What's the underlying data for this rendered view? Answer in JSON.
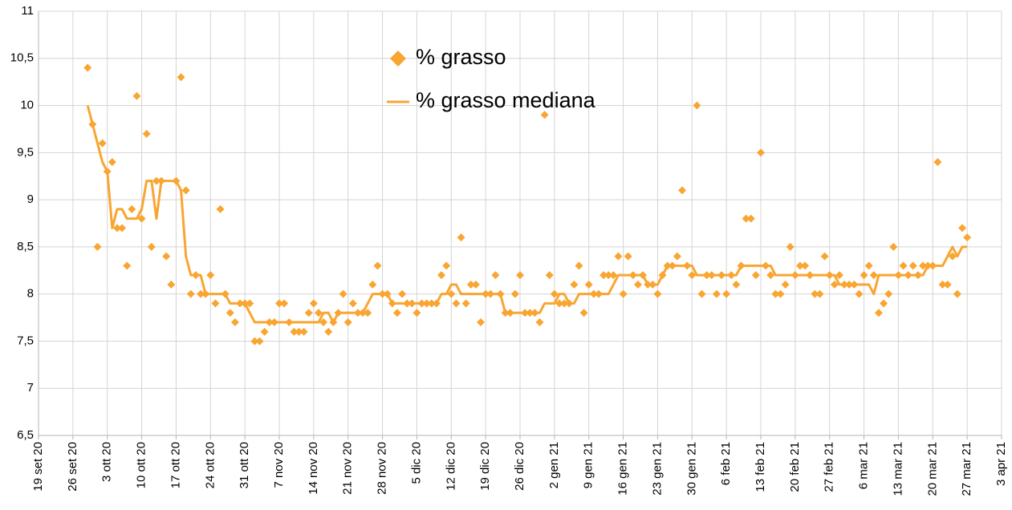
{
  "chart_data": {
    "type": "scatter",
    "x": [
      "2020-09-29",
      "2020-09-30",
      "2020-10-01",
      "2020-10-02",
      "2020-10-03",
      "2020-10-04",
      "2020-10-05",
      "2020-10-06",
      "2020-10-07",
      "2020-10-08",
      "2020-10-09",
      "2020-10-10",
      "2020-10-11",
      "2020-10-12",
      "2020-10-13",
      "2020-10-14",
      "2020-10-15",
      "2020-10-16",
      "2020-10-17",
      "2020-10-18",
      "2020-10-19",
      "2020-10-20",
      "2020-10-21",
      "2020-10-22",
      "2020-10-23",
      "2020-10-24",
      "2020-10-25",
      "2020-10-26",
      "2020-10-27",
      "2020-10-28",
      "2020-10-29",
      "2020-10-30",
      "2020-10-31",
      "2020-11-01",
      "2020-11-02",
      "2020-11-03",
      "2020-11-04",
      "2020-11-05",
      "2020-11-06",
      "2020-11-07",
      "2020-11-08",
      "2020-11-09",
      "2020-11-10",
      "2020-11-11",
      "2020-11-12",
      "2020-11-13",
      "2020-11-14",
      "2020-11-15",
      "2020-11-16",
      "2020-11-17",
      "2020-11-18",
      "2020-11-19",
      "2020-11-20",
      "2020-11-21",
      "2020-11-22",
      "2020-11-23",
      "2020-11-24",
      "2020-11-25",
      "2020-11-26",
      "2020-11-27",
      "2020-11-28",
      "2020-11-29",
      "2020-11-30",
      "2020-12-01",
      "2020-12-02",
      "2020-12-03",
      "2020-12-04",
      "2020-12-05",
      "2020-12-06",
      "2020-12-07",
      "2020-12-08",
      "2020-12-09",
      "2020-12-10",
      "2020-12-11",
      "2020-12-12",
      "2020-12-13",
      "2020-12-14",
      "2020-12-15",
      "2020-12-16",
      "2020-12-17",
      "2020-12-18",
      "2020-12-19",
      "2020-12-20",
      "2020-12-21",
      "2020-12-22",
      "2020-12-23",
      "2020-12-24",
      "2020-12-25",
      "2020-12-26",
      "2020-12-27",
      "2020-12-28",
      "2020-12-29",
      "2020-12-30",
      "2020-12-31",
      "2021-01-01",
      "2021-01-02",
      "2021-01-03",
      "2021-01-04",
      "2021-01-05",
      "2021-01-06",
      "2021-01-07",
      "2021-01-08",
      "2021-01-09",
      "2021-01-10",
      "2021-01-11",
      "2021-01-12",
      "2021-01-13",
      "2021-01-14",
      "2021-01-15",
      "2021-01-16",
      "2021-01-17",
      "2021-01-18",
      "2021-01-19",
      "2021-01-20",
      "2021-01-21",
      "2021-01-22",
      "2021-01-23",
      "2021-01-24",
      "2021-01-25",
      "2021-01-26",
      "2021-01-27",
      "2021-01-28",
      "2021-01-29",
      "2021-01-30",
      "2021-01-31",
      "2021-02-01",
      "2021-02-02",
      "2021-02-03",
      "2021-02-04",
      "2021-02-05",
      "2021-02-06",
      "2021-02-07",
      "2021-02-08",
      "2021-02-09",
      "2021-02-10",
      "2021-02-11",
      "2021-02-12",
      "2021-02-13",
      "2021-02-14",
      "2021-02-15",
      "2021-02-16",
      "2021-02-17",
      "2021-02-18",
      "2021-02-19",
      "2021-02-20",
      "2021-02-21",
      "2021-02-22",
      "2021-02-23",
      "2021-02-24",
      "2021-02-25",
      "2021-02-26",
      "2021-02-27",
      "2021-02-28",
      "2021-03-01",
      "2021-03-02",
      "2021-03-03",
      "2021-03-04",
      "2021-03-05",
      "2021-03-06",
      "2021-03-07",
      "2021-03-08",
      "2021-03-09",
      "2021-03-10",
      "2021-03-11",
      "2021-03-12",
      "2021-03-13",
      "2021-03-14",
      "2021-03-15",
      "2021-03-16",
      "2021-03-17",
      "2021-03-18",
      "2021-03-19",
      "2021-03-20",
      "2021-03-21",
      "2021-03-22",
      "2021-03-23",
      "2021-03-24",
      "2021-03-25",
      "2021-03-26",
      "2021-03-27"
    ],
    "series": [
      {
        "name": "% grasso",
        "type": "scatter",
        "color": "#f9a531",
        "values": [
          10.4,
          9.8,
          8.5,
          9.6,
          9.3,
          9.4,
          8.7,
          8.7,
          8.3,
          8.9,
          10.1,
          8.8,
          9.7,
          8.5,
          9.2,
          9.2,
          8.4,
          8.1,
          9.2,
          10.3,
          9.1,
          8.0,
          8.2,
          8.0,
          8.0,
          8.2,
          7.9,
          8.9,
          8.0,
          7.8,
          7.7,
          7.9,
          7.9,
          7.9,
          7.5,
          7.5,
          7.6,
          7.7,
          7.7,
          7.9,
          7.9,
          7.7,
          7.6,
          7.6,
          7.6,
          7.8,
          7.9,
          7.8,
          7.7,
          7.6,
          7.7,
          7.8,
          8.0,
          7.7,
          7.9,
          7.8,
          7.8,
          7.8,
          8.1,
          8.3,
          8.0,
          8.0,
          7.9,
          7.8,
          8.0,
          7.9,
          7.9,
          7.8,
          7.9,
          7.9,
          7.9,
          7.9,
          8.2,
          8.3,
          8.0,
          7.9,
          8.6,
          7.9,
          8.1,
          8.1,
          7.7,
          8.0,
          8.0,
          8.2,
          8.0,
          7.8,
          7.8,
          8.0,
          8.2,
          7.8,
          7.8,
          7.8,
          7.7,
          9.9,
          8.2,
          8.0,
          7.9,
          7.9,
          7.9,
          8.1,
          8.3,
          7.8,
          8.1,
          8.0,
          8.0,
          8.2,
          8.2,
          8.2,
          8.4,
          8.0,
          8.4,
          8.2,
          8.1,
          8.2,
          8.1,
          8.1,
          8.0,
          8.2,
          8.3,
          8.3,
          8.4,
          9.1,
          8.3,
          8.2,
          10.0,
          8.0,
          8.2,
          8.2,
          8.0,
          8.2,
          8.0,
          8.2,
          8.1,
          8.3,
          8.8,
          8.8,
          8.2,
          9.5,
          8.3,
          8.2,
          8.0,
          8.0,
          8.1,
          8.5,
          8.2,
          8.3,
          8.3,
          8.2,
          8.0,
          8.0,
          8.4,
          8.2,
          8.1,
          8.2,
          8.1,
          8.1,
          8.1,
          8.0,
          8.2,
          8.3,
          8.2,
          7.8,
          7.9,
          8.0,
          8.5,
          8.2,
          8.3,
          8.2,
          8.3,
          8.2,
          8.3,
          8.3,
          8.3,
          9.4,
          8.1,
          8.1,
          8.4,
          8.0,
          8.7,
          8.6
        ]
      },
      {
        "name": "% grasso mediana",
        "type": "line",
        "color": "#f9a531",
        "values": [
          10.0,
          9.8,
          9.6,
          9.4,
          9.3,
          8.7,
          8.9,
          8.9,
          8.8,
          8.8,
          8.8,
          8.9,
          9.2,
          9.2,
          8.8,
          9.2,
          9.2,
          9.2,
          9.2,
          9.1,
          8.4,
          8.2,
          8.2,
          8.2,
          8.0,
          8.0,
          8.0,
          8.0,
          8.0,
          7.9,
          7.9,
          7.9,
          7.9,
          7.8,
          7.7,
          7.7,
          7.7,
          7.7,
          7.7,
          7.7,
          7.7,
          7.7,
          7.7,
          7.7,
          7.7,
          7.7,
          7.7,
          7.7,
          7.8,
          7.8,
          7.7,
          7.8,
          7.8,
          7.8,
          7.8,
          7.8,
          7.8,
          7.9,
          8.0,
          8.0,
          8.0,
          8.0,
          7.9,
          7.9,
          7.9,
          7.9,
          7.9,
          7.9,
          7.9,
          7.9,
          7.9,
          7.9,
          8.0,
          8.0,
          8.1,
          8.1,
          8.0,
          8.0,
          8.0,
          8.0,
          8.0,
          8.0,
          8.0,
          8.0,
          8.0,
          7.8,
          7.8,
          7.8,
          7.8,
          7.8,
          7.8,
          7.8,
          7.8,
          7.9,
          7.9,
          7.9,
          8.0,
          8.0,
          7.9,
          7.9,
          8.0,
          8.0,
          8.0,
          8.0,
          8.0,
          8.0,
          8.0,
          8.1,
          8.2,
          8.2,
          8.2,
          8.2,
          8.2,
          8.2,
          8.1,
          8.1,
          8.1,
          8.2,
          8.3,
          8.3,
          8.3,
          8.3,
          8.3,
          8.3,
          8.2,
          8.2,
          8.2,
          8.2,
          8.2,
          8.2,
          8.2,
          8.2,
          8.2,
          8.3,
          8.3,
          8.3,
          8.3,
          8.3,
          8.3,
          8.3,
          8.2,
          8.2,
          8.2,
          8.2,
          8.2,
          8.2,
          8.2,
          8.2,
          8.2,
          8.2,
          8.2,
          8.2,
          8.2,
          8.1,
          8.1,
          8.1,
          8.1,
          8.1,
          8.1,
          8.1,
          8.0,
          8.2,
          8.2,
          8.2,
          8.2,
          8.2,
          8.2,
          8.2,
          8.2,
          8.2,
          8.2,
          8.3,
          8.3,
          8.3,
          8.3,
          8.4,
          8.5,
          8.4,
          8.5,
          8.5
        ]
      }
    ],
    "xlim": [
      "2020-09-19",
      "2021-04-03"
    ],
    "xticks": [
      {
        "value": "2020-09-19",
        "label": "19 set 20"
      },
      {
        "value": "2020-09-26",
        "label": "26 set 20"
      },
      {
        "value": "2020-10-03",
        "label": "3 ott 20"
      },
      {
        "value": "2020-10-10",
        "label": "10 ott 20"
      },
      {
        "value": "2020-10-17",
        "label": "17 ott 20"
      },
      {
        "value": "2020-10-24",
        "label": "24 ott 20"
      },
      {
        "value": "2020-10-31",
        "label": "31 ott 20"
      },
      {
        "value": "2020-11-07",
        "label": "7 nov 20"
      },
      {
        "value": "2020-11-14",
        "label": "14 nov 20"
      },
      {
        "value": "2020-11-21",
        "label": "21 nov 20"
      },
      {
        "value": "2020-11-28",
        "label": "28 nov 20"
      },
      {
        "value": "2020-12-05",
        "label": "5 dic 20"
      },
      {
        "value": "2020-12-12",
        "label": "12 dic 20"
      },
      {
        "value": "2020-12-19",
        "label": "19 dic 20"
      },
      {
        "value": "2020-12-26",
        "label": "26 dic 20"
      },
      {
        "value": "2021-01-02",
        "label": "2 gen 21"
      },
      {
        "value": "2021-01-09",
        "label": "9 gen 21"
      },
      {
        "value": "2021-01-16",
        "label": "16 gen 21"
      },
      {
        "value": "2021-01-23",
        "label": "23 gen 21"
      },
      {
        "value": "2021-01-30",
        "label": "30 gen 21"
      },
      {
        "value": "2021-02-06",
        "label": "6 feb 21"
      },
      {
        "value": "2021-02-13",
        "label": "13 feb 21"
      },
      {
        "value": "2021-02-20",
        "label": "20 feb 21"
      },
      {
        "value": "2021-02-27",
        "label": "27 feb 21"
      },
      {
        "value": "2021-03-06",
        "label": "6 mar 21"
      },
      {
        "value": "2021-03-13",
        "label": "13 mar 21"
      },
      {
        "value": "2021-03-20",
        "label": "20 mar 21"
      },
      {
        "value": "2021-03-27",
        "label": "27 mar 21"
      },
      {
        "value": "2021-04-03",
        "label": "3 apr 21"
      }
    ],
    "ylim": [
      6.5,
      11
    ],
    "yticks": [
      {
        "value": 6.5,
        "label": "6,5"
      },
      7,
      {
        "value": 7.5,
        "label": "7,5"
      },
      8,
      {
        "value": 8.5,
        "label": "8,5"
      },
      9,
      {
        "value": 9.5,
        "label": "9,5"
      },
      10,
      {
        "value": 10.5,
        "label": "10,5"
      },
      11
    ],
    "grid": true
  }
}
